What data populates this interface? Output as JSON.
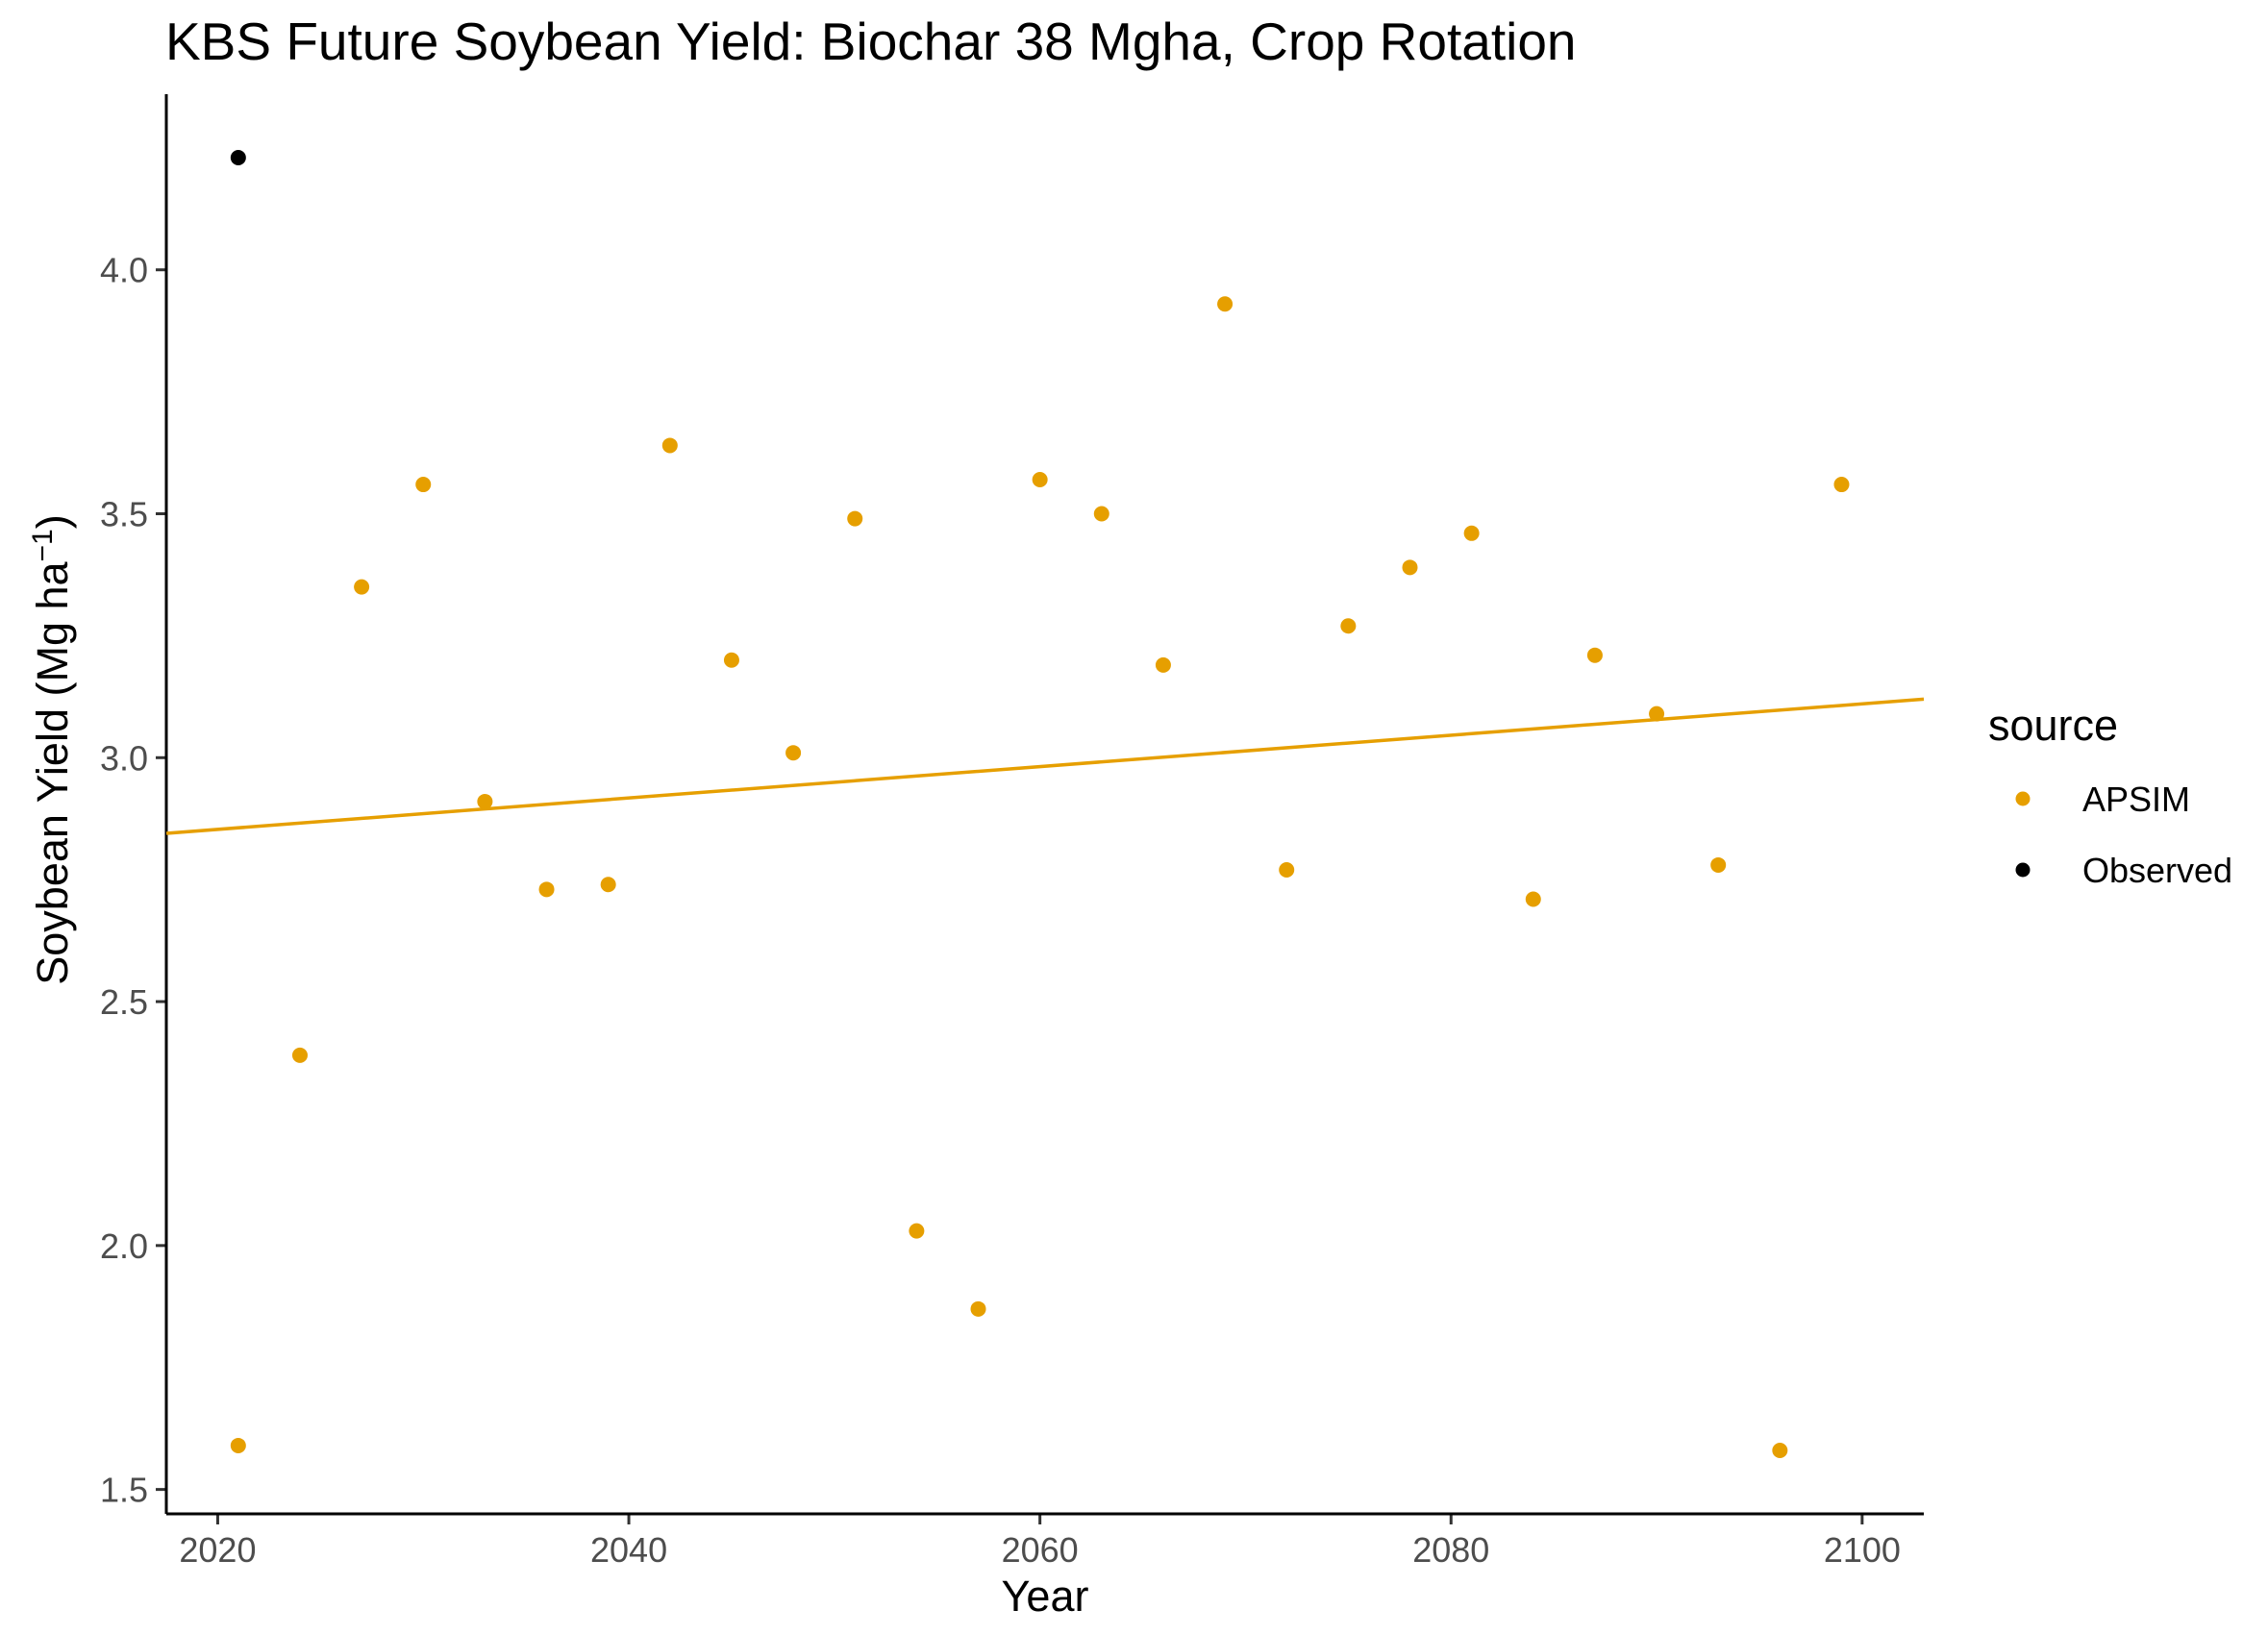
{
  "chart_data": {
    "type": "scatter",
    "title": "KBS Future Soybean Yield:  Biochar 38 Mgha, Crop Rotation",
    "xlabel": "Year",
    "ylabel": "Soybean Yield (Mg ha",
    "ylabel_superscript": "−1",
    "ylabel_close": ")",
    "xlim": [
      2017.5,
      2103
    ],
    "ylim": [
      1.45,
      4.36
    ],
    "x_ticks": [
      2020,
      2040,
      2060,
      2080,
      2100
    ],
    "x_tick_labels": [
      "2020",
      "2040",
      "2060",
      "2080",
      "2100"
    ],
    "y_ticks": [
      1.5,
      2.0,
      2.5,
      3.0,
      3.5,
      4.0
    ],
    "y_tick_labels": [
      "1.5",
      "2.0",
      "2.5",
      "3.0",
      "3.5",
      "4.0"
    ],
    "grid": false,
    "legend": {
      "title": "source",
      "position": "right",
      "entries": [
        {
          "label": "APSIM",
          "color": "#E69F00"
        },
        {
          "label": "Observed",
          "color": "#000000"
        }
      ]
    },
    "series": [
      {
        "name": "APSIM",
        "color": "#E69F00",
        "x": [
          2021,
          2024,
          2027,
          2030,
          2033,
          2036,
          2039,
          2042,
          2045,
          2048,
          2051,
          2054,
          2057,
          2060,
          2063,
          2066,
          2069,
          2072,
          2075,
          2078,
          2081,
          2084,
          2087,
          2090,
          2093,
          2096,
          2099
        ],
        "y": [
          1.59,
          2.39,
          3.35,
          3.56,
          2.91,
          2.73,
          2.74,
          3.64,
          3.2,
          3.01,
          3.49,
          2.03,
          1.87,
          3.57,
          3.5,
          3.19,
          3.93,
          2.77,
          3.27,
          3.39,
          3.46,
          2.71,
          3.21,
          3.09,
          2.78,
          1.58,
          3.56
        ]
      },
      {
        "name": "Observed",
        "color": "#000000",
        "x": [
          2021
        ],
        "y": [
          4.23
        ]
      }
    ],
    "trendline": {
      "series": "APSIM",
      "color": "#E69F00",
      "x": [
        2017.5,
        2103
      ],
      "y": [
        2.845,
        3.12
      ]
    }
  }
}
